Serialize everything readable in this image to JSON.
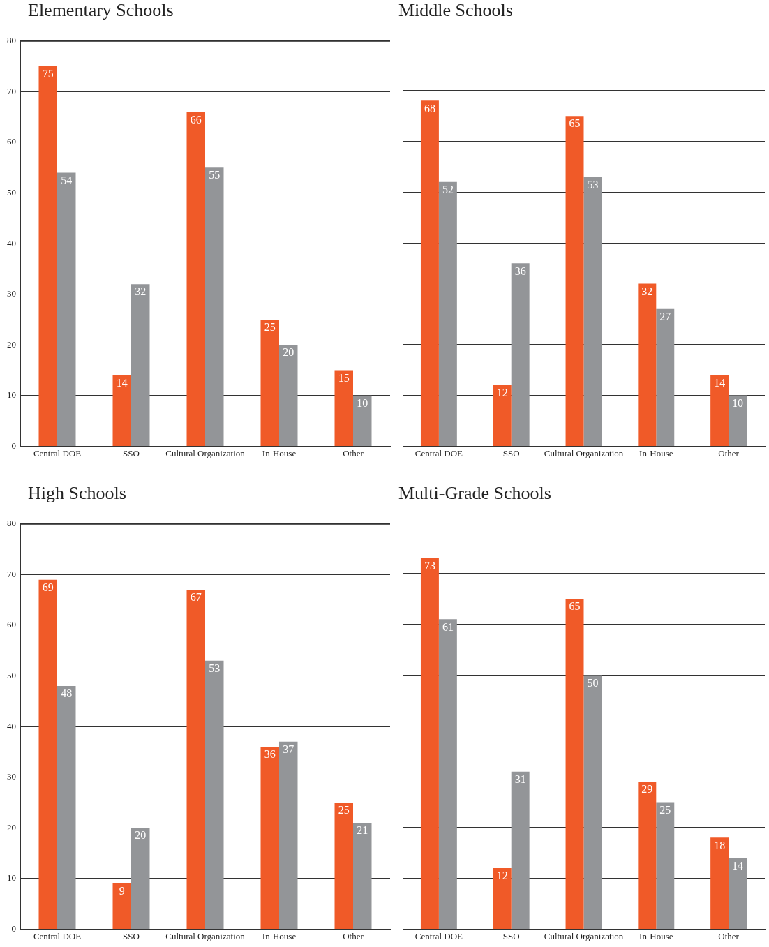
{
  "chart_data": [
    {
      "type": "bar",
      "title": "Elementary Schools",
      "categories": [
        "Central DOE",
        "SSO",
        "Cultural Organization",
        "In-House",
        "Other"
      ],
      "series": [
        {
          "color": "#f05a28",
          "values": [
            75,
            14,
            66,
            25,
            15
          ]
        },
        {
          "color": "#939598",
          "values": [
            54,
            32,
            55,
            20,
            10
          ]
        }
      ],
      "ylim": [
        0,
        80
      ],
      "yticks": [
        0,
        10,
        20,
        30,
        40,
        50,
        60,
        70,
        80
      ],
      "grid": "y",
      "data_labels": true
    },
    {
      "type": "bar",
      "title": "Middle Schools",
      "categories": [
        "Central DOE",
        "SSO",
        "Cultural Organization",
        "In-House",
        "Other"
      ],
      "series": [
        {
          "color": "#f05a28",
          "values": [
            68,
            12,
            65,
            32,
            14
          ]
        },
        {
          "color": "#939598",
          "values": [
            52,
            36,
            53,
            27,
            10
          ]
        }
      ],
      "ylim": [
        0,
        80
      ],
      "yticks": [
        0,
        10,
        20,
        30,
        40,
        50,
        60,
        70,
        80
      ],
      "grid": "y",
      "data_labels": true,
      "tick_labels": "x"
    },
    {
      "type": "bar",
      "title": "High Schools",
      "categories": [
        "Central DOE",
        "SSO",
        "Cultural Organization",
        "In-House",
        "Other"
      ],
      "series": [
        {
          "color": "#f05a28",
          "values": [
            69,
            9,
            67,
            36,
            25
          ]
        },
        {
          "color": "#939598",
          "values": [
            48,
            20,
            53,
            37,
            21
          ]
        }
      ],
      "ylim": [
        0,
        80
      ],
      "yticks": [
        0,
        10,
        20,
        30,
        40,
        50,
        60,
        70,
        80
      ],
      "grid": "y",
      "data_labels": true
    },
    {
      "type": "bar",
      "title": "Multi-Grade Schools",
      "categories": [
        "Central DOE",
        "SSO",
        "Cultural Organization",
        "In-House",
        "Other"
      ],
      "series": [
        {
          "color": "#f05a28",
          "values": [
            73,
            12,
            65,
            29,
            18
          ]
        },
        {
          "color": "#939598",
          "values": [
            61,
            31,
            50,
            25,
            14
          ]
        }
      ],
      "ylim": [
        0,
        80
      ],
      "yticks": [
        0,
        10,
        20,
        30,
        40,
        50,
        60,
        70,
        80
      ],
      "grid": "y",
      "data_labels": true,
      "tick_labels": "x"
    }
  ]
}
